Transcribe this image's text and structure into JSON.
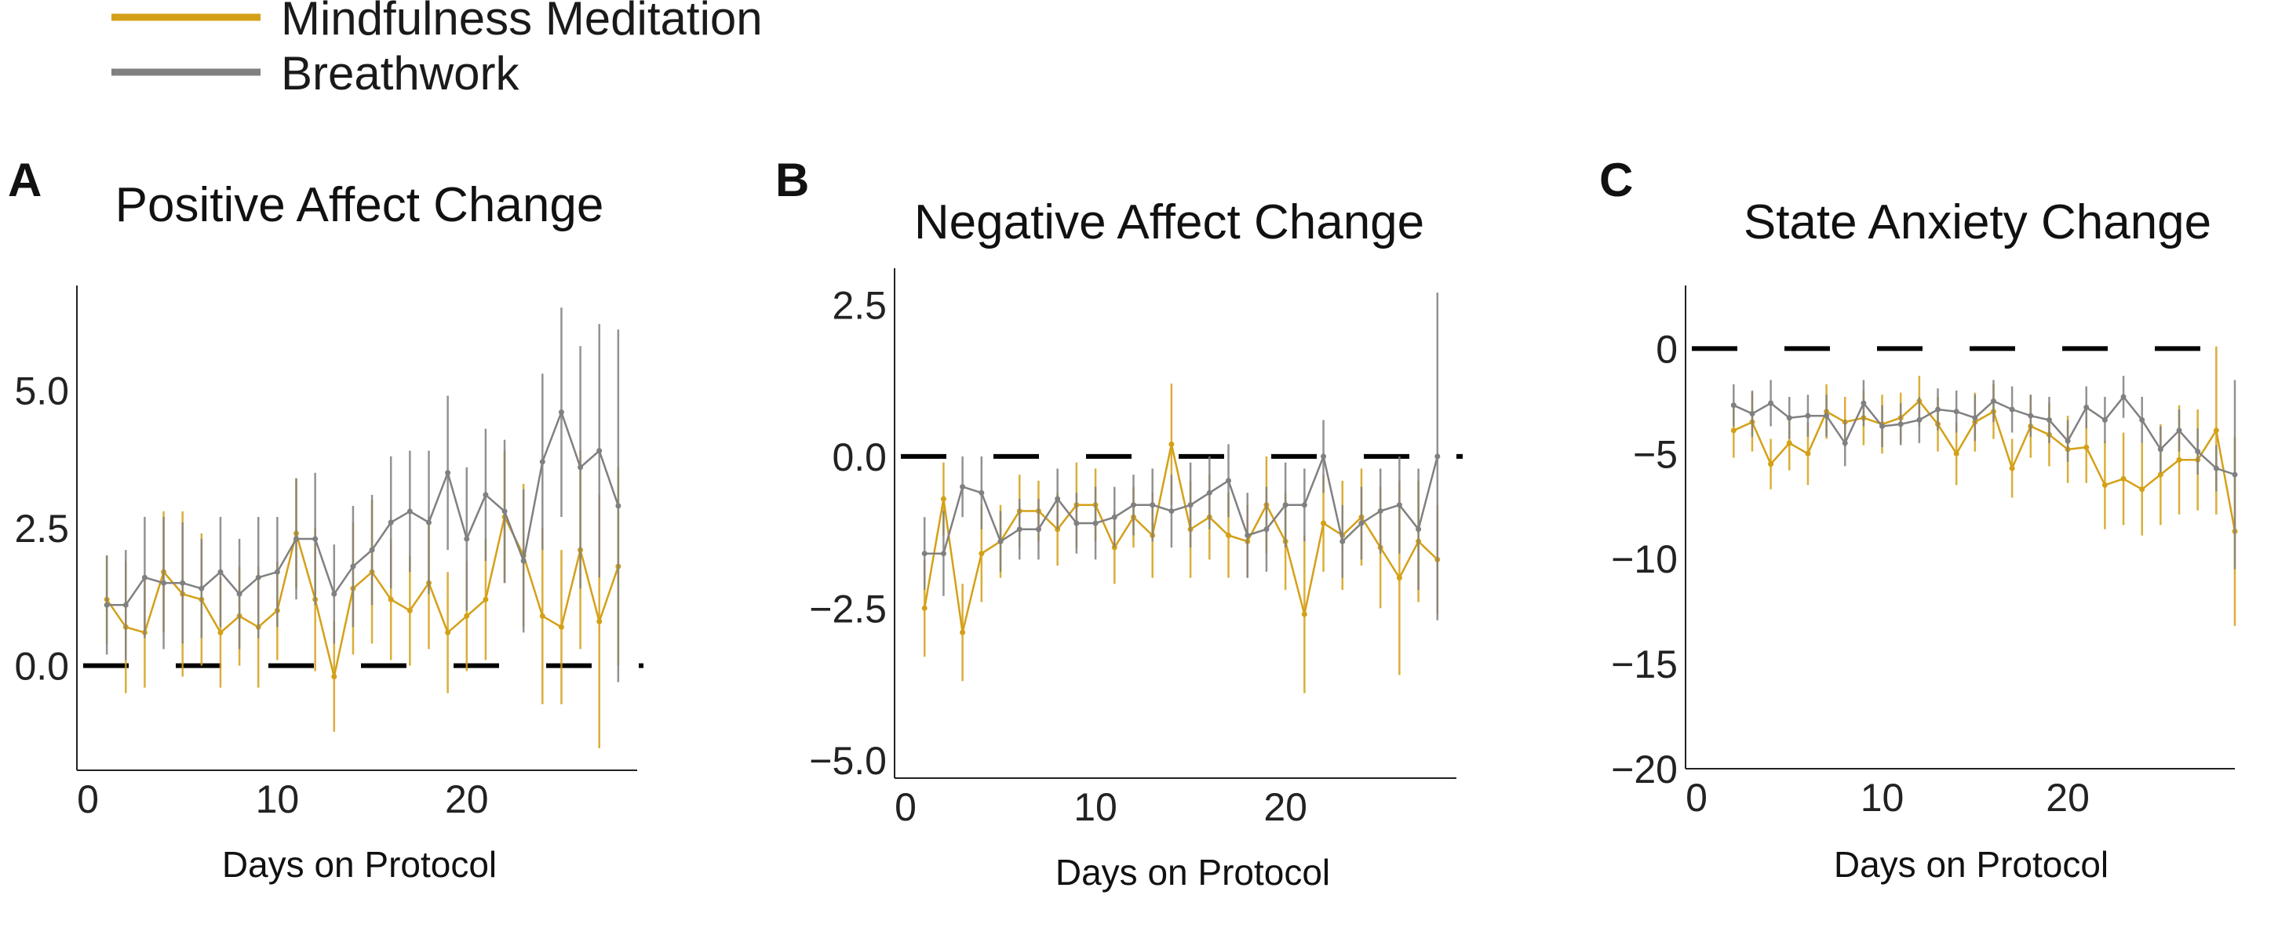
{
  "legend": {
    "position": "top-left",
    "items": [
      {
        "label": "Mindfulness Meditation",
        "color": "#D4A017"
      },
      {
        "label": "Breathwork",
        "color": "#808080"
      }
    ]
  },
  "chart_data": [
    {
      "type": "line",
      "panel": "A",
      "title": "Positive Affect Change",
      "xlabel": "Days on Protocol",
      "ylabel": "",
      "xlim": [
        0,
        29
      ],
      "ylim": [
        -1.9,
        6.9
      ],
      "xticks": [
        "0",
        "10",
        "20"
      ],
      "yticks": [
        "0.0",
        "2.5",
        "5.0"
      ],
      "reference_line": 0,
      "grid": false,
      "series": [
        {
          "name": "Mindfulness Meditation",
          "color": "#D4A017",
          "x": [
            1,
            2,
            3,
            4,
            5,
            6,
            7,
            8,
            9,
            10,
            11,
            12,
            13,
            14,
            15,
            16,
            17,
            18,
            19,
            20,
            21,
            22,
            23,
            24,
            25,
            26,
            27,
            28
          ],
          "y": [
            1.2,
            0.7,
            0.6,
            1.7,
            1.3,
            1.2,
            0.6,
            0.9,
            0.7,
            1.0,
            2.4,
            1.2,
            -0.2,
            1.4,
            1.7,
            1.2,
            1.0,
            1.5,
            0.6,
            0.9,
            1.2,
            2.7,
            2.0,
            0.9,
            0.7,
            2.1,
            0.8,
            1.8
          ],
          "err": [
            0.8,
            1.2,
            1.0,
            1.1,
            1.5,
            1.2,
            1.0,
            0.9,
            1.1,
            0.9,
            1.0,
            1.3,
            1.0,
            1.2,
            1.3,
            1.1,
            1.0,
            1.2,
            1.1,
            1.0,
            1.1,
            1.2,
            1.3,
            1.6,
            1.4,
            1.8,
            2.3,
            1.8
          ]
        },
        {
          "name": "Breathwork",
          "color": "#808080",
          "x": [
            1,
            2,
            3,
            4,
            5,
            6,
            7,
            8,
            9,
            10,
            11,
            12,
            13,
            14,
            15,
            16,
            17,
            18,
            19,
            20,
            21,
            22,
            23,
            24,
            25,
            26,
            27,
            28
          ],
          "y": [
            1.1,
            1.1,
            1.6,
            1.5,
            1.5,
            1.4,
            1.7,
            1.3,
            1.6,
            1.7,
            2.3,
            2.3,
            1.3,
            1.8,
            2.1,
            2.6,
            2.8,
            2.6,
            3.5,
            2.3,
            3.1,
            2.8,
            1.9,
            3.7,
            4.6,
            3.6,
            3.9,
            2.9
          ],
          "err": [
            0.9,
            1.0,
            1.1,
            1.2,
            1.1,
            0.9,
            1.0,
            1.0,
            1.1,
            1.0,
            1.1,
            1.2,
            0.9,
            1.1,
            1.0,
            1.2,
            1.1,
            1.3,
            1.4,
            1.3,
            1.2,
            1.3,
            1.3,
            1.6,
            1.9,
            2.2,
            2.3,
            3.2
          ]
        }
      ]
    },
    {
      "type": "line",
      "panel": "B",
      "title": "Negative Affect Change",
      "xlabel": "Days on Protocol",
      "ylabel": "",
      "xlim": [
        0,
        29
      ],
      "ylim": [
        -5.3,
        3.1
      ],
      "xticks": [
        "0",
        "10",
        "20"
      ],
      "yticks": [
        "-5.0",
        "-2.5",
        "0.0",
        "2.5"
      ],
      "reference_line": 0,
      "grid": false,
      "series": [
        {
          "name": "Mindfulness Meditation",
          "color": "#D4A017",
          "x": [
            1,
            2,
            3,
            4,
            5,
            6,
            7,
            8,
            9,
            10,
            11,
            12,
            13,
            14,
            15,
            16,
            17,
            18,
            19,
            20,
            21,
            22,
            23,
            24,
            25,
            26,
            27,
            28
          ],
          "y": [
            -2.5,
            -0.7,
            -2.9,
            -1.6,
            -1.4,
            -0.9,
            -0.9,
            -1.2,
            -0.8,
            -0.8,
            -1.5,
            -1.0,
            -1.3,
            0.2,
            -1.2,
            -1.0,
            -1.3,
            -1.4,
            -0.8,
            -1.4,
            -2.6,
            -1.1,
            -1.3,
            -1.0,
            -1.5,
            -2.0,
            -1.4,
            -1.7
          ],
          "err": [
            0.8,
            0.6,
            0.8,
            0.8,
            0.6,
            0.6,
            0.5,
            0.6,
            0.7,
            0.6,
            0.6,
            0.5,
            0.7,
            1.0,
            0.8,
            0.7,
            0.7,
            0.6,
            0.8,
            0.8,
            1.3,
            0.8,
            0.9,
            0.8,
            1.0,
            1.6,
            1.0,
            0.9
          ]
        },
        {
          "name": "Breathwork",
          "color": "#808080",
          "x": [
            1,
            2,
            3,
            4,
            5,
            6,
            7,
            8,
            9,
            10,
            11,
            12,
            13,
            14,
            15,
            16,
            17,
            18,
            19,
            20,
            21,
            22,
            23,
            24,
            25,
            26,
            27,
            28
          ],
          "y": [
            -1.6,
            -1.6,
            -0.5,
            -0.6,
            -1.4,
            -1.2,
            -1.2,
            -0.7,
            -1.1,
            -1.1,
            -1.0,
            -0.8,
            -0.8,
            -0.9,
            -0.8,
            -0.6,
            -0.4,
            -1.3,
            -1.2,
            -0.8,
            -0.8,
            0.0,
            -1.4,
            -1.1,
            -0.9,
            -0.8,
            -1.2,
            0.0
          ],
          "err": [
            0.6,
            0.7,
            0.5,
            0.6,
            0.5,
            0.5,
            0.5,
            0.5,
            0.5,
            0.6,
            0.5,
            0.5,
            0.6,
            0.6,
            0.7,
            0.6,
            0.6,
            0.7,
            0.7,
            0.7,
            0.6,
            0.6,
            0.6,
            0.6,
            0.7,
            0.8,
            1.0,
            2.7
          ]
        }
      ]
    },
    {
      "type": "line",
      "panel": "C",
      "title": "State Anxiety Change",
      "xlabel": "Days on Protocol",
      "ylabel": "",
      "xlim": [
        0,
        29
      ],
      "ylim": [
        -20,
        3
      ],
      "xticks": [
        "0",
        "10",
        "20"
      ],
      "yticks": [
        "-20",
        "-15",
        "-10",
        "-5",
        "0"
      ],
      "reference_line": 0,
      "grid": false,
      "series": [
        {
          "name": "Mindfulness Meditation",
          "color": "#D4A017",
          "x": [
            2,
            3,
            4,
            5,
            6,
            7,
            8,
            9,
            10,
            11,
            12,
            13,
            14,
            15,
            16,
            17,
            18,
            19,
            20,
            21,
            22,
            23,
            24,
            25,
            26,
            27,
            28,
            29
          ],
          "y": [
            -3.9,
            -3.5,
            -5.5,
            -4.5,
            -5.0,
            -3.0,
            -3.5,
            -3.3,
            -3.6,
            -3.3,
            -2.5,
            -3.6,
            -5.0,
            -3.5,
            -3.0,
            -5.7,
            -3.7,
            -4.1,
            -4.8,
            -4.7,
            -6.5,
            -6.2,
            -6.7,
            -6.0,
            -5.3,
            -5.3,
            -3.9,
            -8.7
          ],
          "err": [
            1.3,
            1.4,
            1.2,
            1.3,
            1.5,
            1.3,
            1.2,
            1.3,
            1.4,
            1.2,
            1.2,
            1.3,
            1.5,
            1.4,
            1.3,
            1.4,
            1.5,
            1.5,
            1.6,
            1.7,
            2.1,
            2.2,
            2.2,
            2.4,
            2.6,
            2.4,
            4.0,
            4.5
          ]
        },
        {
          "name": "Breathwork",
          "color": "#808080",
          "x": [
            2,
            3,
            4,
            5,
            6,
            7,
            8,
            9,
            10,
            11,
            12,
            13,
            14,
            15,
            16,
            17,
            18,
            19,
            20,
            21,
            22,
            23,
            24,
            25,
            26,
            27,
            28,
            29
          ],
          "y": [
            -2.7,
            -3.1,
            -2.6,
            -3.3,
            -3.2,
            -3.2,
            -4.5,
            -2.6,
            -3.7,
            -3.6,
            -3.4,
            -2.9,
            -3.0,
            -3.3,
            -2.5,
            -2.9,
            -3.2,
            -3.4,
            -4.4,
            -2.8,
            -3.4,
            -2.3,
            -3.4,
            -4.8,
            -3.9,
            -4.9,
            -5.7,
            -6.0
          ],
          "err": [
            1.0,
            1.1,
            1.1,
            1.0,
            1.0,
            1.0,
            1.1,
            1.1,
            1.0,
            1.0,
            1.1,
            1.0,
            1.0,
            1.1,
            1.0,
            1.1,
            1.0,
            1.1,
            1.0,
            1.0,
            1.1,
            1.0,
            1.1,
            1.1,
            1.0,
            1.1,
            1.1,
            4.5
          ]
        }
      ]
    }
  ]
}
